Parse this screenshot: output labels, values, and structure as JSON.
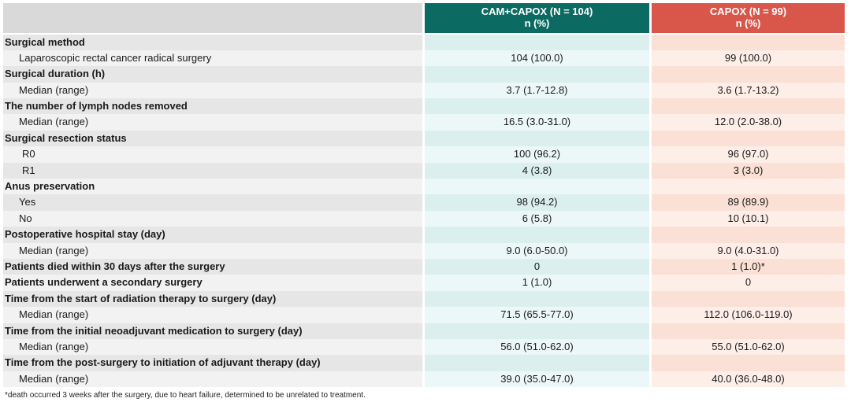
{
  "header": {
    "col1_line1": "CAM+CAPOX (N = 104)",
    "col1_line2": "n (%)",
    "col2_line1": "CAPOX (N = 99)",
    "col2_line2": "n (%)"
  },
  "rows": [
    {
      "label": "Surgical method",
      "v1": "",
      "v2": ""
    },
    {
      "label": "Laparoscopic rectal cancer radical surgery",
      "v1": "104 (100.0)",
      "v2": "99 (100.0)"
    },
    {
      "label": "Surgical duration (h)",
      "v1": "",
      "v2": ""
    },
    {
      "label": "Median (range)",
      "v1": "3.7 (1.7-12.8)",
      "v2": "3.6 (1.7-13.2)"
    },
    {
      "label": "The number of lymph nodes removed",
      "v1": "",
      "v2": ""
    },
    {
      "label": "Median (range)",
      "v1": "16.5 (3.0-31.0)",
      "v2": "12.0 (2.0-38.0)"
    },
    {
      "label": "Surgical resection status",
      "v1": "",
      "v2": ""
    },
    {
      "label": "R0",
      "v1": "100 (96.2)",
      "v2": "96 (97.0)"
    },
    {
      "label": "R1",
      "v1": "4 (3.8)",
      "v2": "3 (3.0)"
    },
    {
      "label": "Anus preservation",
      "v1": "",
      "v2": ""
    },
    {
      "label": "Yes",
      "v1": "98 (94.2)",
      "v2": "89 (89.9)"
    },
    {
      "label": "No",
      "v1": "6 (5.8)",
      "v2": "10 (10.1)"
    },
    {
      "label": "Postoperative hospital stay (day)",
      "v1": "",
      "v2": ""
    },
    {
      "label": "Median (range)",
      "v1": "9.0 (6.0-50.0)",
      "v2": "9.0 (4.0-31.0)"
    },
    {
      "label": "Patients died within 30 days after the surgery",
      "v1": "0",
      "v2": "1 (1.0)*"
    },
    {
      "label": "Patients underwent a secondary surgery",
      "v1": "1 (1.0)",
      "v2": "0"
    },
    {
      "label": "Time from the start of radiation therapy to surgery (day)",
      "v1": "",
      "v2": ""
    },
    {
      "label": "Median (range)",
      "v1": "71.5 (65.5-77.0)",
      "v2": "112.0 (106.0-119.0)"
    },
    {
      "label": "Time from the initial neoadjuvant medication to surgery (day)",
      "v1": "",
      "v2": ""
    },
    {
      "label": "Median (range)",
      "v1": "56.0 (51.0-62.0)",
      "v2": "55.0 (51.0-62.0)"
    },
    {
      "label": "Time from the post-surgery to initiation of adjuvant therapy (day)",
      "v1": "",
      "v2": ""
    },
    {
      "label": "Median (range)",
      "v1": "39.0 (35.0-47.0)",
      "v2": "40.0 (36.0-48.0)"
    }
  ],
  "footnote": "*death occurred 3 weeks after the surgery, due to heart failure, determined to be unrelated to treatment.",
  "colors": {
    "cam_header": "#0b6b62",
    "capox_header": "#d9574a"
  }
}
